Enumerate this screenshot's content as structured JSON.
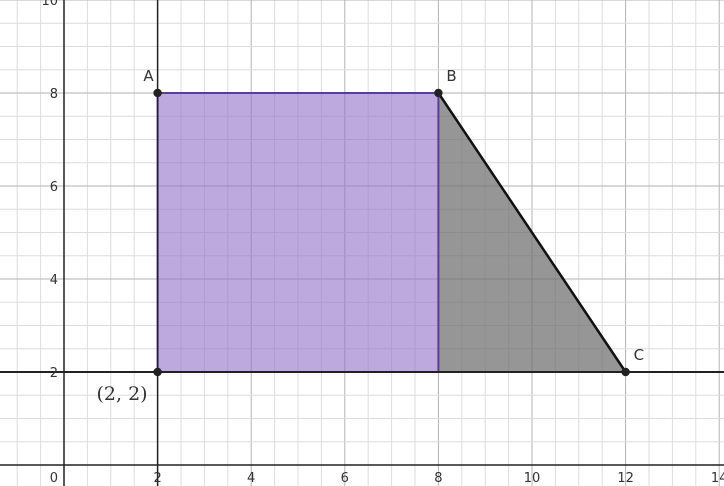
{
  "chart_data": {
    "type": "scatter",
    "xlim": [
      -1.4,
      14
    ],
    "ylim": [
      -0.2,
      10
    ],
    "grid": true,
    "x_ticks": [
      2,
      4,
      6,
      8,
      10,
      12,
      14
    ],
    "y_ticks": [
      2,
      4,
      6,
      8,
      10
    ],
    "origin_label": "0",
    "points": [
      {
        "name": "A",
        "x": 2,
        "y": 8
      },
      {
        "name": "B",
        "x": 8,
        "y": 8
      },
      {
        "name": "C",
        "x": 12,
        "y": 2
      },
      {
        "name": "",
        "x": 2,
        "y": 2
      }
    ],
    "coordinate_label": "(2, 2)",
    "regions": [
      {
        "shape": "rectangle",
        "vertices": [
          [
            2,
            2
          ],
          [
            2,
            8
          ],
          [
            8,
            8
          ],
          [
            8,
            2
          ]
        ],
        "fill": "#9370c8",
        "opacity": 0.6,
        "edge": "#5a3f91"
      },
      {
        "shape": "triangle",
        "vertices": [
          [
            8,
            2
          ],
          [
            8,
            8
          ],
          [
            12,
            2
          ]
        ],
        "fill": "#6e6e6e",
        "opacity": 0.72,
        "edge": "#111111"
      }
    ],
    "horizontal_line_y": 2,
    "colors": {
      "axis": "#222222",
      "minor_grid": "#dddddd",
      "major_grid": "#b3b3b3",
      "point": "#222222"
    }
  }
}
